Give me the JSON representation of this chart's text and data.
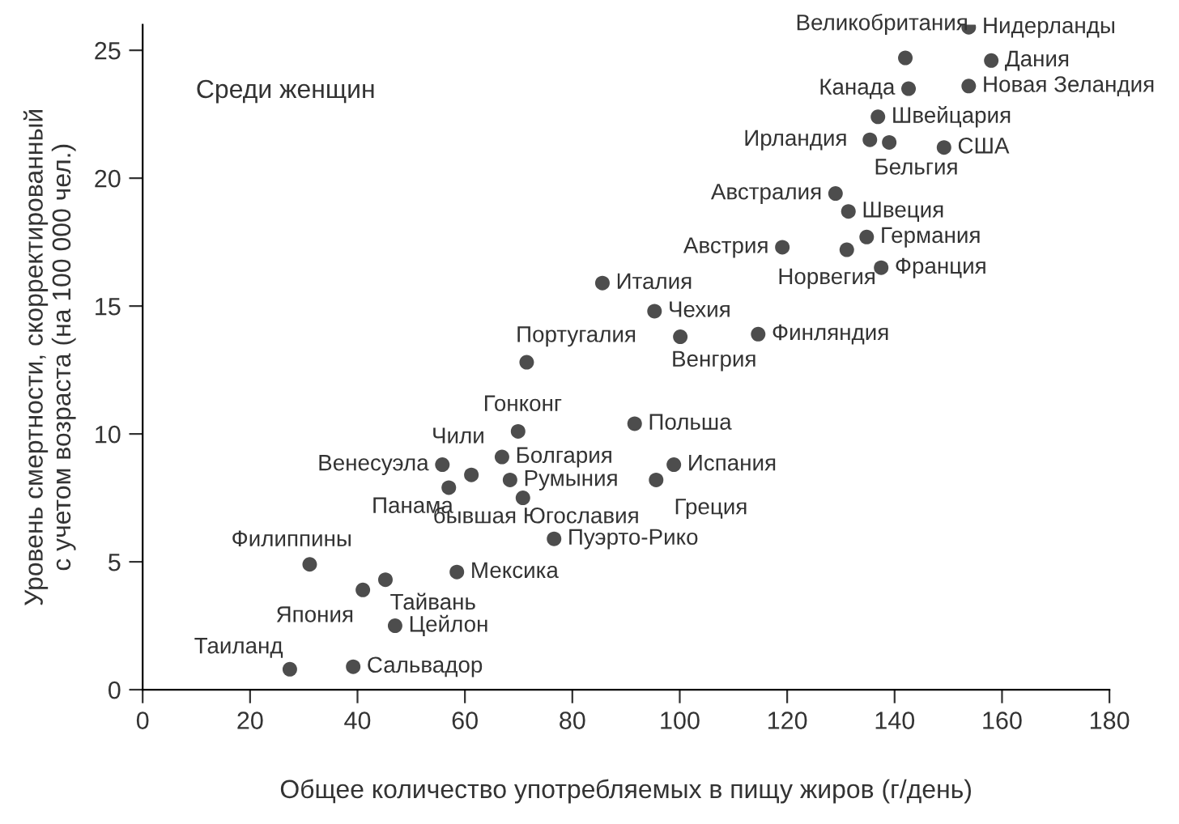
{
  "chart_data": {
    "type": "scatter",
    "xlabel": "Общее количество употребляемых в пищу жиров (г/день)",
    "ylabel": "Уровень смертности, скорректированный\nс учетом возраста (на 100 000 чел.)",
    "xlim": [
      0,
      180
    ],
    "xticks": [
      0,
      20,
      40,
      60,
      80,
      100,
      120,
      140,
      160,
      180
    ],
    "ylim": [
      0,
      26
    ],
    "yticks": [
      0,
      5,
      10,
      15,
      20,
      25
    ],
    "grid": false,
    "legend": false,
    "marker": "circle",
    "series": [
      {
        "color": "#4d4d4d",
        "x": [
          27.4,
          39.2,
          47.0,
          41.0,
          45.2,
          31.1,
          58.5,
          76.6,
          70.8,
          68.4,
          57.0,
          55.8,
          61.2,
          66.9,
          69.9,
          71.5,
          85.6,
          91.6,
          98.9,
          95.6,
          100.1,
          114.6,
          95.3,
          119.1,
          131.1,
          134.8,
          137.5,
          129.0,
          131.4,
          135.4,
          139.0,
          136.9,
          149.2,
          142.6,
          142.0,
          153.8,
          158.0,
          153.8
        ],
        "values": [
          0.8,
          0.9,
          2.5,
          3.9,
          4.3,
          4.9,
          4.6,
          5.9,
          7.5,
          8.2,
          7.9,
          8.8,
          8.4,
          9.1,
          10.1,
          12.8,
          15.9,
          10.4,
          8.8,
          8.2,
          13.8,
          13.9,
          14.8,
          17.3,
          17.2,
          17.7,
          16.5,
          19.4,
          18.7,
          21.5,
          21.4,
          22.4,
          21.2,
          23.5,
          24.7,
          25.9,
          24.6,
          23.6
        ]
      }
    ],
    "annotations": [
      "Среди женщин",
      {
        "text": "Таиланд",
        "x": 27.4,
        "y": 0.8
      },
      {
        "text": "Сальвадор",
        "x": 39.2,
        "y": 0.9
      },
      {
        "text": "Цейлон",
        "x": 47.0,
        "y": 2.5
      },
      {
        "text": "Япония",
        "x": 41.0,
        "y": 3.9
      },
      {
        "text": "Тайвань",
        "x": 45.2,
        "y": 4.3
      },
      {
        "text": "Филиппины",
        "x": 31.1,
        "y": 4.9
      },
      {
        "text": "Мексика",
        "x": 58.5,
        "y": 4.6
      },
      {
        "text": "Пуэрто-Рико",
        "x": 76.6,
        "y": 5.9
      },
      {
        "text": "бывшая Югославия",
        "x": 70.8,
        "y": 7.5
      },
      {
        "text": "Румыния",
        "x": 68.4,
        "y": 8.2
      },
      {
        "text": "Панама",
        "x": 57.0,
        "y": 7.9
      },
      {
        "text": "Венесуэла",
        "x": 55.8,
        "y": 8.8
      },
      {
        "text": "Чили",
        "x": 61.2,
        "y": 8.4
      },
      {
        "text": "Болгария",
        "x": 66.9,
        "y": 9.1
      },
      {
        "text": "Гонконг",
        "x": 69.9,
        "y": 10.1
      },
      {
        "text": "Португалия",
        "x": 71.5,
        "y": 12.8
      },
      {
        "text": "Италия",
        "x": 85.6,
        "y": 15.9
      },
      {
        "text": "Польша",
        "x": 91.6,
        "y": 10.4
      },
      {
        "text": "Испания",
        "x": 98.9,
        "y": 8.8
      },
      {
        "text": "Греция",
        "x": 95.6,
        "y": 8.2
      },
      {
        "text": "Венгрия",
        "x": 100.1,
        "y": 13.8
      },
      {
        "text": "Финляндия",
        "x": 114.6,
        "y": 13.9
      },
      {
        "text": "Чехия",
        "x": 95.3,
        "y": 14.8
      },
      {
        "text": "Австрия",
        "x": 119.1,
        "y": 17.3
      },
      {
        "text": "Норвегия",
        "x": 131.1,
        "y": 17.2
      },
      {
        "text": "Германия",
        "x": 134.8,
        "y": 17.7
      },
      {
        "text": "Франция",
        "x": 137.5,
        "y": 16.5
      },
      {
        "text": "Австралия",
        "x": 129.0,
        "y": 19.4
      },
      {
        "text": "Швеция",
        "x": 131.4,
        "y": 18.7
      },
      {
        "text": "Ирландия",
        "x": 135.4,
        "y": 21.5
      },
      {
        "text": "Бельгия",
        "x": 139.0,
        "y": 21.4
      },
      {
        "text": "Швейцария",
        "x": 136.9,
        "y": 22.4
      },
      {
        "text": "США",
        "x": 149.2,
        "y": 21.2
      },
      {
        "text": "Канада",
        "x": 142.6,
        "y": 23.5
      },
      {
        "text": "Великобритания",
        "x": 142.0,
        "y": 24.7
      },
      {
        "text": "Нидерланды",
        "x": 153.8,
        "y": 25.9
      },
      {
        "text": "Дания",
        "x": 158.0,
        "y": 24.6
      },
      {
        "text": "Новая Зеландия",
        "x": 153.8,
        "y": 23.6
      }
    ]
  }
}
